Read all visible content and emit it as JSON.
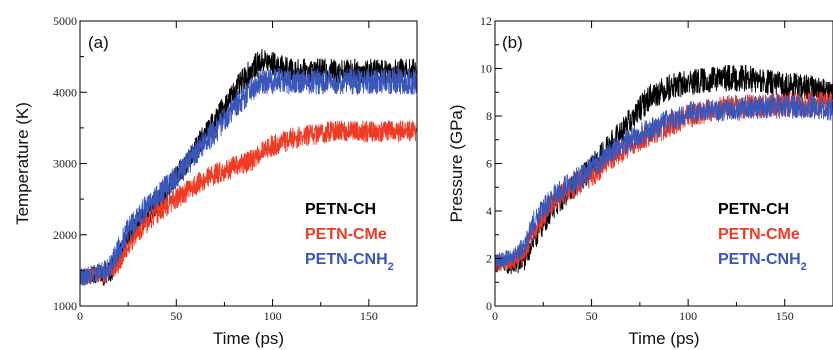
{
  "colors": {
    "PETN-CH": "#000000",
    "PETN-CMe": "#ef3a24",
    "PETN-CNH2": "#3a56b8"
  },
  "chart_data": [
    {
      "type": "line",
      "panel_label": "(a)",
      "xlabel": "Time (ps)",
      "ylabel": "Temperature (K)",
      "xlim": [
        0,
        175
      ],
      "ylim": [
        1000,
        5000
      ],
      "xticks": [
        0,
        50,
        100,
        150
      ],
      "yticks": [
        1000,
        2000,
        3000,
        4000,
        5000
      ],
      "legend_position": "lower-right",
      "series": [
        {
          "name": "PETN-CH",
          "legend_label": "PETN-CH",
          "x": [
            0,
            5,
            10,
            15,
            20,
            25,
            30,
            40,
            50,
            60,
            70,
            80,
            90,
            95,
            100,
            110,
            120,
            130,
            140,
            150,
            160,
            175
          ],
          "y": [
            1400,
            1420,
            1450,
            1460,
            1650,
            1950,
            2150,
            2450,
            2800,
            3200,
            3600,
            4000,
            4350,
            4450,
            4400,
            4300,
            4300,
            4300,
            4300,
            4300,
            4300,
            4300
          ],
          "noise": 170
        },
        {
          "name": "PETN-CMe",
          "legend_label": "PETN-CMe",
          "x": [
            0,
            5,
            10,
            15,
            20,
            25,
            30,
            40,
            50,
            60,
            70,
            80,
            90,
            95,
            100,
            110,
            120,
            130,
            140,
            150,
            160,
            175
          ],
          "y": [
            1400,
            1430,
            1450,
            1480,
            1600,
            1850,
            2050,
            2300,
            2500,
            2700,
            2850,
            2950,
            3050,
            3200,
            3250,
            3350,
            3400,
            3450,
            3450,
            3450,
            3450,
            3450
          ],
          "noise": 150
        },
        {
          "name": "PETN-CNH2",
          "legend_label": "PETN-CNH",
          "legend_sub": "2",
          "x": [
            0,
            5,
            10,
            15,
            20,
            25,
            30,
            40,
            50,
            60,
            70,
            80,
            90,
            95,
            100,
            110,
            120,
            130,
            140,
            150,
            160,
            175
          ],
          "y": [
            1400,
            1430,
            1480,
            1520,
            1800,
            2050,
            2250,
            2550,
            2800,
            3150,
            3450,
            3800,
            4050,
            4150,
            4150,
            4150,
            4150,
            4150,
            4150,
            4150,
            4150,
            4150
          ],
          "noise": 180
        }
      ]
    },
    {
      "type": "line",
      "panel_label": "(b)",
      "xlabel": "Time (ps)",
      "ylabel": "Pressure (GPa)",
      "xlim": [
        0,
        175
      ],
      "ylim": [
        0,
        12
      ],
      "xticks": [
        0,
        50,
        100,
        150
      ],
      "yticks": [
        0,
        2,
        4,
        6,
        8,
        10,
        12
      ],
      "legend_position": "lower-right",
      "series": [
        {
          "name": "PETN-CH",
          "legend_label": "PETN-CH",
          "x": [
            0,
            10,
            15,
            20,
            30,
            40,
            50,
            60,
            70,
            80,
            90,
            100,
            110,
            120,
            130,
            140,
            150,
            160,
            175
          ],
          "y": [
            1.8,
            1.7,
            2.0,
            2.8,
            4.2,
            5.0,
            5.8,
            6.8,
            7.8,
            8.8,
            9.2,
            9.4,
            9.5,
            9.6,
            9.6,
            9.4,
            9.3,
            9.2,
            9.0
          ],
          "noise": 0.55
        },
        {
          "name": "PETN-CMe",
          "legend_label": "PETN-CMe",
          "x": [
            0,
            10,
            15,
            20,
            30,
            40,
            50,
            60,
            70,
            80,
            90,
            100,
            110,
            120,
            130,
            140,
            150,
            160,
            175
          ],
          "y": [
            1.8,
            1.9,
            2.3,
            3.2,
            4.4,
            5.0,
            5.5,
            6.2,
            6.8,
            7.2,
            7.6,
            8.0,
            8.2,
            8.4,
            8.4,
            8.4,
            8.5,
            8.5,
            8.6
          ],
          "noise": 0.5
        },
        {
          "name": "PETN-CNH2",
          "legend_label": "PETN-CNH",
          "legend_sub": "2",
          "x": [
            0,
            10,
            15,
            20,
            30,
            40,
            50,
            60,
            70,
            80,
            90,
            100,
            110,
            120,
            130,
            140,
            150,
            160,
            175
          ],
          "y": [
            1.9,
            2.1,
            2.6,
            3.5,
            4.6,
            5.2,
            5.8,
            6.5,
            7.0,
            7.4,
            7.8,
            8.1,
            8.2,
            8.3,
            8.3,
            8.4,
            8.4,
            8.4,
            8.3
          ],
          "noise": 0.5
        }
      ]
    }
  ]
}
